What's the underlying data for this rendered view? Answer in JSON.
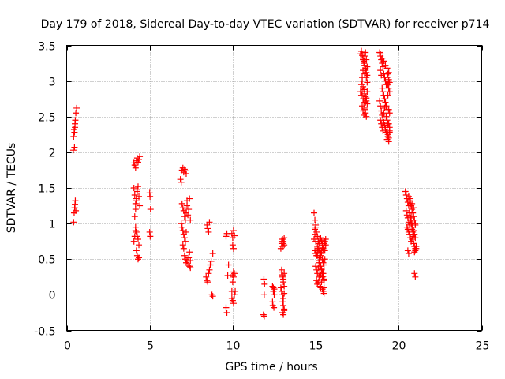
{
  "chart_data": {
    "type": "scatter",
    "title": "Day 179 of 2018, Sidereal Day-to-day VTEC variation (SDTVAR) for receiver p714",
    "xlabel": "GPS time / hours",
    "ylabel": "SDTVAR / TECUs",
    "xlim": [
      0,
      25
    ],
    "ylim": [
      -0.5,
      3.5
    ],
    "xticks": [
      0,
      5,
      10,
      15,
      20,
      25
    ],
    "yticks": [
      -0.5,
      0,
      0.5,
      1,
      1.5,
      2,
      2.5,
      3,
      3.5
    ],
    "xtick_labels": [
      "0",
      "5",
      "10",
      "15",
      "20",
      "25"
    ],
    "ytick_labels": [
      "-0.5",
      "0",
      "0.5",
      "1",
      "1.5",
      "2",
      "2.5",
      "3",
      "3.5"
    ],
    "grid": true,
    "marker": "+",
    "marker_color": "#ff0000",
    "series": [
      {
        "name": "SDTVAR",
        "x": [
          0.4,
          0.42,
          0.45,
          0.47,
          0.5,
          0.52,
          0.55,
          0.6,
          0.42,
          0.45,
          0.48,
          0.5,
          0.52,
          0.55,
          0.47,
          0.5,
          4.05,
          4.1,
          4.15,
          4.2,
          4.25,
          4.3,
          4.35,
          4.4,
          4.05,
          4.1,
          4.15,
          4.2,
          4.25,
          4.1,
          4.15,
          4.2,
          4.25,
          4.3,
          4.35,
          4.4,
          4.15,
          4.2,
          4.25,
          4.3,
          4.35,
          4.05,
          4.1,
          4.15,
          4.2,
          4.25,
          4.3,
          4.35,
          5.0,
          5.02,
          5.05,
          5.0,
          5.03,
          6.85,
          6.9,
          6.95,
          7.0,
          7.05,
          7.1,
          7.15,
          7.2,
          6.95,
          7.0,
          7.05,
          7.1,
          7.15,
          7.2,
          7.25,
          6.9,
          6.95,
          7.0,
          7.05,
          7.1,
          7.15,
          7.2,
          7.25,
          7.0,
          7.05,
          7.1,
          7.15,
          7.2,
          7.25,
          7.3,
          7.35,
          7.4,
          7.45,
          7.3,
          7.35,
          7.4,
          7.45,
          7.4,
          7.45,
          8.4,
          8.45,
          8.5,
          8.55,
          8.6,
          8.65,
          8.45,
          8.5,
          8.55,
          8.6,
          8.7,
          8.8,
          8.75,
          8.8,
          9.6,
          9.65,
          9.7,
          9.75,
          9.6,
          9.65,
          9.95,
          10.0,
          10.05,
          10.1,
          9.95,
          10.0,
          10.05,
          10.1,
          10.0,
          10.05,
          10.1,
          10.15,
          10.0,
          10.05,
          10.0,
          10.05,
          9.95,
          11.85,
          11.9,
          11.88,
          11.92,
          11.9,
          12.4,
          12.45,
          12.5,
          12.42,
          12.48,
          12.45,
          12.5,
          12.4,
          12.9,
          12.95,
          13.0,
          13.05,
          13.1,
          12.95,
          13.0,
          13.05,
          13.1,
          12.9,
          12.95,
          13.0,
          13.05,
          13.1,
          13.0,
          13.05,
          13.1,
          13.0,
          13.05,
          13.1,
          12.95,
          13.0,
          13.05,
          13.1,
          12.95,
          13.0,
          13.05,
          13.1,
          14.9,
          14.95,
          15.0,
          15.05,
          15.1,
          15.15,
          15.2,
          15.25,
          15.3,
          15.35,
          15.4,
          15.45,
          15.5,
          15.55,
          15.6,
          14.95,
          15.0,
          15.05,
          15.1,
          15.15,
          15.2,
          15.25,
          15.3,
          15.35,
          15.4,
          15.45,
          15.5,
          15.55,
          15.0,
          15.05,
          15.1,
          15.15,
          15.2,
          15.25,
          15.3,
          15.35,
          15.4,
          15.45,
          15.5,
          15.05,
          15.1,
          15.15,
          15.2,
          15.25,
          15.3,
          15.35,
          15.4,
          15.45,
          15.5,
          15.1,
          15.2,
          15.3,
          15.4,
          15.5,
          15.0,
          14.95,
          14.9,
          14.95,
          15.0,
          15.1,
          15.2,
          15.3,
          15.35,
          15.4,
          15.45,
          15.5,
          15.55,
          15.6,
          15.5,
          15.45,
          15.4,
          17.7,
          17.75,
          17.8,
          17.85,
          17.9,
          17.95,
          18.0,
          18.05,
          18.1,
          17.75,
          17.8,
          17.85,
          17.9,
          17.95,
          18.0,
          18.05,
          18.1,
          17.8,
          17.85,
          17.9,
          17.95,
          18.0,
          18.05,
          18.1,
          17.75,
          17.8,
          17.85,
          17.9,
          17.95,
          18.0,
          18.05,
          17.7,
          17.75,
          17.8,
          17.85,
          17.9,
          17.95,
          18.0,
          18.05,
          18.1,
          17.8,
          17.85,
          17.9,
          17.95,
          18.0,
          18.05,
          18.1,
          18.85,
          18.9,
          18.95,
          19.0,
          19.05,
          19.1,
          19.15,
          19.2,
          19.25,
          19.3,
          19.35,
          19.4,
          19.45,
          18.9,
          18.95,
          19.0,
          19.05,
          19.1,
          19.15,
          19.2,
          19.25,
          19.3,
          19.35,
          19.4,
          18.85,
          18.9,
          18.95,
          19.0,
          19.05,
          19.1,
          19.15,
          19.2,
          19.25,
          19.3,
          19.35,
          19.4,
          19.45,
          18.9,
          18.95,
          19.0,
          19.05,
          19.1,
          19.15,
          19.2,
          19.25,
          19.3,
          19.35,
          19.4,
          19.45,
          19.3,
          19.35,
          19.4,
          19.45,
          19.35,
          19.4,
          19.45,
          19.4,
          19.45,
          18.9,
          19.0,
          19.1,
          19.2,
          19.3,
          19.4,
          20.4,
          20.45,
          20.5,
          20.55,
          20.6,
          20.65,
          20.7,
          20.75,
          20.8,
          20.85,
          20.9,
          20.95,
          21.0,
          20.45,
          20.5,
          20.55,
          20.6,
          20.65,
          20.7,
          20.75,
          20.8,
          20.85,
          20.9,
          20.95,
          21.0,
          20.5,
          20.55,
          20.6,
          20.65,
          20.7,
          20.75,
          20.8,
          20.85,
          20.9,
          20.95,
          21.0,
          20.55,
          20.6,
          20.65,
          20.7,
          20.75,
          20.8,
          20.85,
          20.9,
          20.95,
          21.0,
          21.05,
          20.6,
          20.7,
          20.8,
          20.9,
          21.0,
          21.05,
          20.95,
          21.0
        ],
        "y": [
          2.03,
          2.22,
          2.32,
          2.28,
          2.35,
          2.45,
          2.55,
          2.62,
          1.02,
          1.15,
          1.22,
          1.27,
          1.32,
          1.18,
          2.07,
          2.4,
          1.85,
          1.82,
          1.78,
          1.88,
          1.92,
          1.86,
          1.9,
          1.94,
          1.5,
          1.4,
          1.28,
          1.35,
          1.45,
          1.1,
          1.2,
          1.32,
          1.48,
          1.52,
          1.38,
          1.25,
          0.95,
          0.88,
          0.82,
          0.78,
          0.7,
          0.75,
          0.82,
          0.9,
          0.62,
          0.55,
          0.5,
          0.52,
          1.43,
          1.38,
          1.2,
          0.88,
          0.82,
          1.62,
          1.58,
          1.75,
          1.78,
          1.72,
          1.76,
          1.74,
          1.7,
          1.28,
          1.22,
          1.18,
          1.1,
          1.05,
          1.15,
          1.25,
          1.0,
          0.95,
          0.9,
          0.85,
          0.8,
          0.75,
          0.88,
          1.32,
          0.7,
          0.65,
          0.55,
          0.5,
          0.45,
          0.48,
          0.42,
          0.52,
          0.6,
          0.48,
          1.12,
          1.2,
          1.35,
          1.05,
          0.4,
          0.38,
          0.25,
          0.2,
          0.18,
          0.3,
          0.35,
          0.42,
          0.98,
          0.93,
          0.88,
          1.02,
          0.47,
          0.58,
          0.0,
          -0.02,
          0.82,
          0.86,
          0.27,
          0.42,
          -0.18,
          -0.25,
          0.86,
          0.8,
          0.9,
          0.83,
          0.05,
          0.18,
          0.25,
          0.3,
          -0.08,
          -0.12,
          0.0,
          0.05,
          0.7,
          0.65,
          0.28,
          0.32,
          -0.05,
          -0.28,
          -0.3,
          0.22,
          0.15,
          0.0,
          0.12,
          0.05,
          0.0,
          -0.15,
          -0.18,
          0.1,
          0.08,
          -0.1,
          0.65,
          0.72,
          0.78,
          0.75,
          0.7,
          0.35,
          0.28,
          0.22,
          0.3,
          0.1,
          0.05,
          0.0,
          -0.05,
          0.02,
          -0.1,
          -0.15,
          -0.2,
          -0.25,
          -0.28,
          -0.22,
          0.32,
          0.25,
          0.18,
          0.12,
          0.75,
          0.68,
          0.72,
          0.8,
          1.15,
          1.05,
          0.95,
          0.88,
          0.82,
          0.75,
          0.72,
          0.78,
          0.8,
          0.76,
          0.7,
          0.65,
          0.72,
          0.75,
          0.78,
          0.62,
          0.58,
          0.55,
          0.6,
          0.65,
          0.52,
          0.48,
          0.55,
          0.6,
          0.5,
          0.45,
          0.42,
          0.5,
          0.4,
          0.35,
          0.3,
          0.38,
          0.45,
          0.32,
          0.28,
          0.35,
          0.25,
          0.3,
          0.22,
          0.2,
          0.15,
          0.18,
          0.25,
          0.12,
          0.1,
          0.18,
          0.08,
          0.05,
          0.1,
          0.68,
          0.62,
          0.58,
          0.66,
          0.7,
          0.75,
          0.85,
          0.78,
          0.92,
          0.98,
          0.55,
          0.48,
          0.4,
          0.36,
          0.3,
          0.26,
          0.2,
          0.62,
          0.7,
          0.02,
          0.05,
          0.08,
          2.85,
          2.95,
          3.05,
          3.15,
          3.25,
          3.35,
          3.4,
          3.3,
          3.2,
          3.42,
          3.38,
          3.32,
          3.28,
          3.22,
          3.18,
          3.12,
          3.08,
          3.0,
          2.92,
          2.88,
          2.82,
          2.78,
          2.72,
          2.68,
          2.8,
          2.85,
          2.75,
          2.7,
          2.6,
          2.55,
          2.5,
          3.38,
          3.42,
          3.36,
          3.3,
          3.25,
          3.1,
          3.15,
          3.05,
          2.98,
          2.65,
          2.58,
          2.52,
          2.62,
          2.7,
          2.76,
          2.85,
          3.4,
          3.35,
          3.3,
          3.25,
          3.2,
          3.1,
          3.05,
          3.0,
          2.95,
          3.05,
          3.1,
          3.02,
          2.98,
          3.15,
          3.08,
          2.9,
          2.85,
          2.8,
          2.75,
          2.7,
          2.65,
          2.6,
          2.8,
          2.9,
          2.72,
          2.65,
          2.58,
          2.52,
          2.48,
          2.55,
          2.62,
          2.7,
          2.5,
          2.45,
          2.4,
          2.6,
          2.55,
          2.45,
          2.4,
          2.35,
          2.3,
          2.42,
          2.38,
          2.32,
          2.28,
          2.35,
          2.25,
          2.2,
          2.3,
          2.18,
          2.22,
          2.15,
          2.28,
          2.95,
          3.0,
          2.85,
          2.4,
          2.35,
          3.38,
          3.32,
          3.28,
          3.22,
          3.18,
          3.12,
          1.45,
          1.4,
          1.35,
          1.3,
          1.38,
          1.32,
          1.28,
          1.25,
          1.2,
          1.15,
          1.1,
          1.05,
          1.0,
          1.18,
          1.12,
          1.08,
          1.02,
          0.98,
          1.05,
          1.1,
          1.0,
          0.95,
          0.9,
          0.85,
          0.8,
          0.95,
          0.92,
          0.88,
          0.85,
          0.8,
          0.75,
          0.78,
          0.82,
          0.72,
          0.68,
          0.65,
          0.62,
          0.58,
          1.15,
          1.08,
          1.0,
          0.92,
          0.88,
          0.85,
          0.6,
          0.62,
          0.65,
          1.25,
          1.35,
          1.28,
          1.22,
          0.98,
          0.68,
          0.3,
          0.25
        ]
      }
    ]
  }
}
